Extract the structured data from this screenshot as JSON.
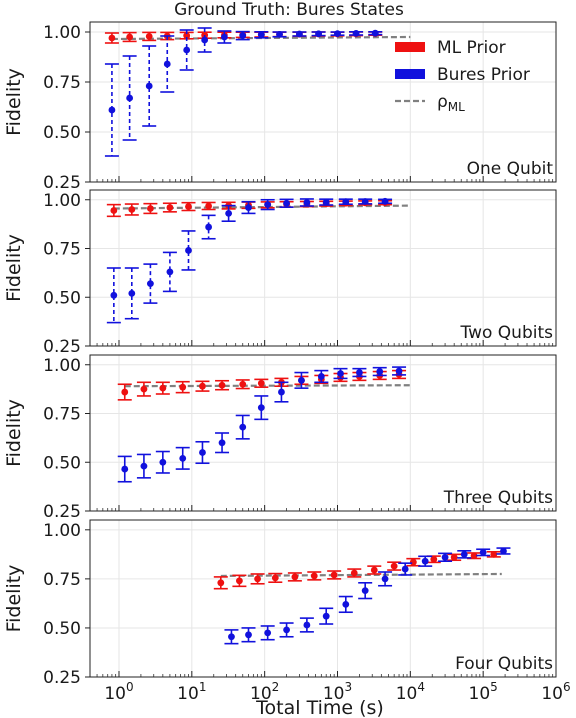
{
  "title": "Ground Truth: Bures States",
  "chart_data": {
    "type": "scatter",
    "title": "Ground Truth: Bures States",
    "xlabel": "Total Time (s)",
    "ylabel": "Fidelity",
    "xscale": "log",
    "xlim": [
      0.4,
      1000000
    ],
    "ylim": [
      0.25,
      1.05
    ],
    "x_ticks": [
      {
        "v": 1,
        "e": "0"
      },
      {
        "v": 10,
        "e": "1"
      },
      {
        "v": 100,
        "e": "2"
      },
      {
        "v": 1000,
        "e": "3"
      },
      {
        "v": 10000,
        "e": "4"
      },
      {
        "v": 100000,
        "e": "5"
      },
      {
        "v": 1000000,
        "e": "6"
      }
    ],
    "x_tick_base": "10",
    "y_ticks": [
      "0.25",
      "0.50",
      "0.75",
      "1.00"
    ],
    "grid": true,
    "colors": {
      "ml": "#ee1111",
      "bures": "#1111dd",
      "rho": "#808080"
    },
    "legend": {
      "position": "top-right",
      "entries": [
        {
          "key": "ml",
          "label": "ML Prior"
        },
        {
          "key": "bures",
          "label": "Bures Prior"
        },
        {
          "key": "rho",
          "label_main": "ρ",
          "label_sub": "ML"
        }
      ]
    },
    "panels": [
      {
        "label": "One Qubit",
        "ml": {
          "x": [
            0.8,
            1.4,
            2.6,
            4.6,
            8.5,
            15,
            28,
            50,
            90,
            160,
            300,
            550,
            1000,
            1800,
            3300
          ],
          "y": [
            0.97,
            0.975,
            0.978,
            0.98,
            0.982,
            0.984,
            0.985,
            0.986,
            0.987,
            0.988,
            0.989,
            0.99,
            0.99,
            0.991,
            0.992
          ],
          "err": [
            0.025,
            0.022,
            0.02,
            0.018,
            0.016,
            0.015,
            0.014,
            0.013,
            0.012,
            0.011,
            0.01,
            0.01,
            0.009,
            0.009,
            0.008
          ]
        },
        "bures": {
          "x": [
            0.8,
            1.4,
            2.6,
            4.6,
            8.5,
            15,
            28,
            50,
            90,
            160,
            300,
            550,
            1000,
            1800,
            3300
          ],
          "y": [
            0.61,
            0.67,
            0.73,
            0.84,
            0.91,
            0.96,
            0.975,
            0.982,
            0.986,
            0.988,
            0.99,
            0.991,
            0.992,
            0.993,
            0.994
          ],
          "err": [
            0.23,
            0.21,
            0.2,
            0.14,
            0.1,
            0.06,
            0.03,
            0.02,
            0.015,
            0.012,
            0.01,
            0.009,
            0.008,
            0.008,
            0.007
          ]
        },
        "rho_ml": {
          "x": [
            0.8,
            10000
          ],
          "y": [
            0.965,
            0.975
          ]
        },
        "dashed_errorbars": true
      },
      {
        "label": "Two Qubits",
        "ml": {
          "x": [
            0.85,
            1.5,
            2.7,
            5,
            9,
            17,
            32,
            60,
            110,
            200,
            380,
            700,
            1300,
            2400,
            4500
          ],
          "y": [
            0.945,
            0.95,
            0.955,
            0.96,
            0.965,
            0.968,
            0.97,
            0.972,
            0.974,
            0.976,
            0.978,
            0.98,
            0.982,
            0.984,
            0.985
          ],
          "err": [
            0.03,
            0.028,
            0.025,
            0.022,
            0.02,
            0.018,
            0.017,
            0.016,
            0.015,
            0.014,
            0.013,
            0.012,
            0.011,
            0.01,
            0.01
          ]
        },
        "bures": {
          "x": [
            0.85,
            1.5,
            2.7,
            5,
            9,
            17,
            32,
            60,
            110,
            200,
            380,
            700,
            1300,
            2400,
            4500
          ],
          "y": [
            0.51,
            0.52,
            0.57,
            0.63,
            0.74,
            0.86,
            0.93,
            0.96,
            0.975,
            0.982,
            0.986,
            0.988,
            0.99,
            0.991,
            0.992
          ],
          "err": [
            0.14,
            0.13,
            0.1,
            0.1,
            0.1,
            0.06,
            0.04,
            0.03,
            0.025,
            0.02,
            0.018,
            0.015,
            0.013,
            0.012,
            0.01
          ]
        },
        "rho_ml": {
          "x": [
            0.85,
            10000
          ],
          "y": [
            0.955,
            0.97
          ]
        },
        "dashed_errorbars": true
      },
      {
        "label": "Three Qubits",
        "ml": {
          "x": [
            1.2,
            2.2,
            4,
            7.5,
            14,
            26,
            50,
            90,
            170,
            320,
            600,
            1100,
            2000,
            3800,
            7000
          ],
          "y": [
            0.86,
            0.875,
            0.88,
            0.885,
            0.89,
            0.895,
            0.9,
            0.905,
            0.91,
            0.92,
            0.925,
            0.935,
            0.94,
            0.945,
            0.95
          ],
          "err": [
            0.04,
            0.035,
            0.03,
            0.028,
            0.025,
            0.023,
            0.022,
            0.02,
            0.02,
            0.02,
            0.02,
            0.02,
            0.02,
            0.02,
            0.02
          ]
        },
        "bures": {
          "x": [
            1.2,
            2.2,
            4,
            7.5,
            14,
            26,
            50,
            90,
            170,
            320,
            600,
            1100,
            2000,
            3800,
            7000
          ],
          "y": [
            0.465,
            0.48,
            0.5,
            0.52,
            0.55,
            0.6,
            0.68,
            0.78,
            0.86,
            0.92,
            0.94,
            0.955,
            0.96,
            0.965,
            0.968
          ],
          "err": [
            0.065,
            0.06,
            0.055,
            0.055,
            0.055,
            0.05,
            0.06,
            0.06,
            0.05,
            0.04,
            0.03,
            0.025,
            0.02,
            0.02,
            0.02
          ]
        },
        "rho_ml": {
          "x": [
            1.2,
            10000
          ],
          "y": [
            0.89,
            0.895
          ]
        },
        "dashed_errorbars": false
      },
      {
        "label": "Four Qubits",
        "ml": {
          "x": [
            25,
            45,
            80,
            140,
            260,
            480,
            900,
            1700,
            3200,
            6000,
            11000,
            21000,
            40000,
            75000,
            140000
          ],
          "y": [
            0.73,
            0.74,
            0.75,
            0.755,
            0.76,
            0.765,
            0.77,
            0.78,
            0.795,
            0.815,
            0.835,
            0.85,
            0.86,
            0.868,
            0.875
          ],
          "err": [
            0.03,
            0.028,
            0.025,
            0.022,
            0.02,
            0.02,
            0.02,
            0.02,
            0.02,
            0.02,
            0.018,
            0.016,
            0.015,
            0.014,
            0.013
          ]
        },
        "bures": {
          "x": [
            35,
            60,
            110,
            200,
            380,
            700,
            1300,
            2400,
            4500,
            8500,
            16000,
            30000,
            55000,
            100000,
            190000
          ],
          "y": [
            0.455,
            0.465,
            0.475,
            0.49,
            0.515,
            0.56,
            0.62,
            0.69,
            0.75,
            0.8,
            0.84,
            0.86,
            0.875,
            0.885,
            0.892
          ],
          "err": [
            0.035,
            0.035,
            0.035,
            0.035,
            0.035,
            0.04,
            0.04,
            0.04,
            0.035,
            0.03,
            0.025,
            0.02,
            0.018,
            0.016,
            0.015
          ]
        },
        "rho_ml": {
          "x": [
            25,
            180000
          ],
          "y": [
            0.765,
            0.775
          ]
        },
        "dashed_errorbars": false
      }
    ]
  }
}
